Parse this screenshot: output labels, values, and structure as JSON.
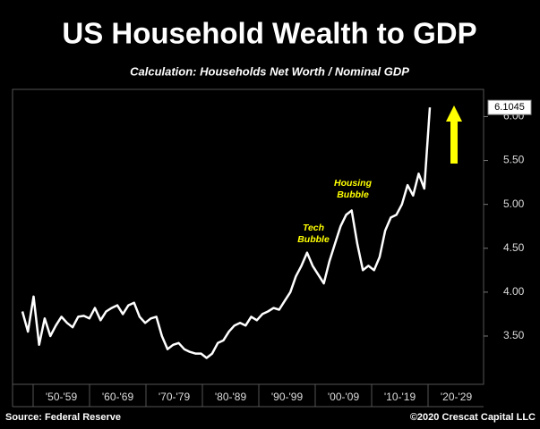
{
  "chart_data": {
    "type": "line",
    "title": "US Household Wealth to GDP",
    "subtitle": "Calculation: Households Net Worth / Nominal GDP",
    "decades": [
      "'50-'59",
      "'60-'69",
      "'70-'79",
      "'80-'89",
      "'90-'99",
      "'00-'09",
      "'10-'19",
      "'20-'29"
    ],
    "values": [
      3.78,
      3.55,
      3.95,
      3.4,
      3.7,
      3.5,
      3.62,
      3.72,
      3.65,
      3.6,
      3.72,
      3.73,
      3.7,
      3.82,
      3.68,
      3.78,
      3.82,
      3.85,
      3.75,
      3.85,
      3.88,
      3.72,
      3.65,
      3.7,
      3.72,
      3.5,
      3.35,
      3.4,
      3.42,
      3.35,
      3.32,
      3.3,
      3.3,
      3.25,
      3.3,
      3.42,
      3.45,
      3.55,
      3.62,
      3.65,
      3.62,
      3.72,
      3.68,
      3.75,
      3.78,
      3.82,
      3.8,
      3.9,
      4.0,
      4.18,
      4.3,
      4.45,
      4.3,
      4.2,
      4.1,
      4.35,
      4.55,
      4.75,
      4.88,
      4.93,
      4.55,
      4.25,
      4.3,
      4.25,
      4.4,
      4.7,
      4.85,
      4.88,
      5.0,
      5.22,
      5.1,
      5.35,
      5.18,
      6.1045
    ],
    "color": "#ffffff",
    "ylim": [
      2.95,
      6.31
    ],
    "yticks": [
      {
        "value": 3.5,
        "label": "3.50"
      },
      {
        "value": 4,
        "label": "4.00"
      },
      {
        "value": 4.5,
        "label": "4.50"
      },
      {
        "value": 5,
        "label": "5.00"
      },
      {
        "value": 5.5,
        "label": "5.50"
      },
      {
        "value": 6,
        "label": "6.00"
      }
    ],
    "annotations": [
      [
        "Tech",
        "Bubble"
      ],
      [
        "Housing",
        "Bubble"
      ]
    ],
    "source": "Source: Federal Reserve",
    "credit": "©2020 Crescat Capital LLC"
  }
}
